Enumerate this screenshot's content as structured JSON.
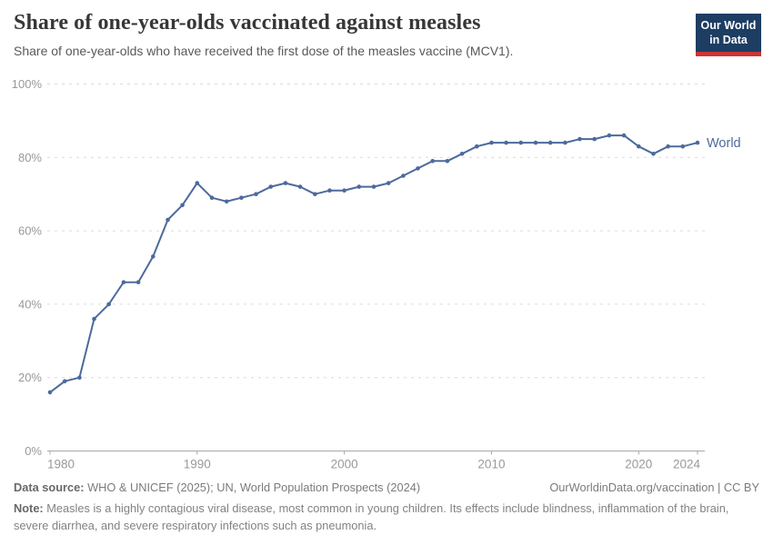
{
  "header": {
    "title": "Share of one-year-olds vaccinated against measles",
    "subtitle": "Share of one-year-olds who have received the first dose of the measles vaccine (MCV1)."
  },
  "logo": {
    "line1": "Our World",
    "line2": "in Data"
  },
  "chart_data": {
    "type": "line",
    "title": "Share of one-year-olds vaccinated against measles",
    "xlabel": "",
    "ylabel": "",
    "unit": "%",
    "xlim": [
      1980,
      2024
    ],
    "ylim": [
      0,
      100
    ],
    "x_ticks": [
      1980,
      1990,
      2000,
      2010,
      2020,
      2024
    ],
    "y_ticks": [
      0,
      20,
      40,
      60,
      80,
      100
    ],
    "grid": "horizontal-dashed",
    "legend_position": "end-of-line",
    "x": [
      1980,
      1981,
      1982,
      1983,
      1984,
      1985,
      1986,
      1987,
      1988,
      1989,
      1990,
      1991,
      1992,
      1993,
      1994,
      1995,
      1996,
      1997,
      1998,
      1999,
      2000,
      2001,
      2002,
      2003,
      2004,
      2005,
      2006,
      2007,
      2008,
      2009,
      2010,
      2011,
      2012,
      2013,
      2014,
      2015,
      2016,
      2017,
      2018,
      2019,
      2020,
      2021,
      2022,
      2023,
      2024
    ],
    "series": [
      {
        "name": "World",
        "color": "#4c6a9c",
        "values": [
          16,
          19,
          20,
          36,
          40,
          46,
          46,
          53,
          63,
          67,
          73,
          69,
          68,
          69,
          70,
          72,
          73,
          72,
          70,
          71,
          71,
          72,
          72,
          73,
          75,
          77,
          79,
          79,
          81,
          83,
          84,
          84,
          84,
          84,
          84,
          84,
          85,
          85,
          86,
          86,
          83,
          81,
          83,
          83,
          84
        ]
      }
    ]
  },
  "colors": {
    "line": "#4c6a9c",
    "grid": "#dadada",
    "axis": "#a8a8a8",
    "axis_text": "#999999",
    "title": "#373737",
    "subtitle": "#595959",
    "footer": "#7b7b7b",
    "logo_bg": "#1d3d63",
    "logo_stripe": "#cb3434"
  },
  "footer": {
    "datasource_label": "Data source:",
    "datasource_text": " WHO & UNICEF (2025); UN, World Population Prospects (2024)",
    "link": "OurWorldinData.org/vaccination | CC BY",
    "note_label": "Note:",
    "note_text": " Measles is a highly contagious viral disease, most common in young children. Its effects include blindness, inflammation of the brain, severe diarrhea, and severe respiratory infections such as pneumonia."
  }
}
